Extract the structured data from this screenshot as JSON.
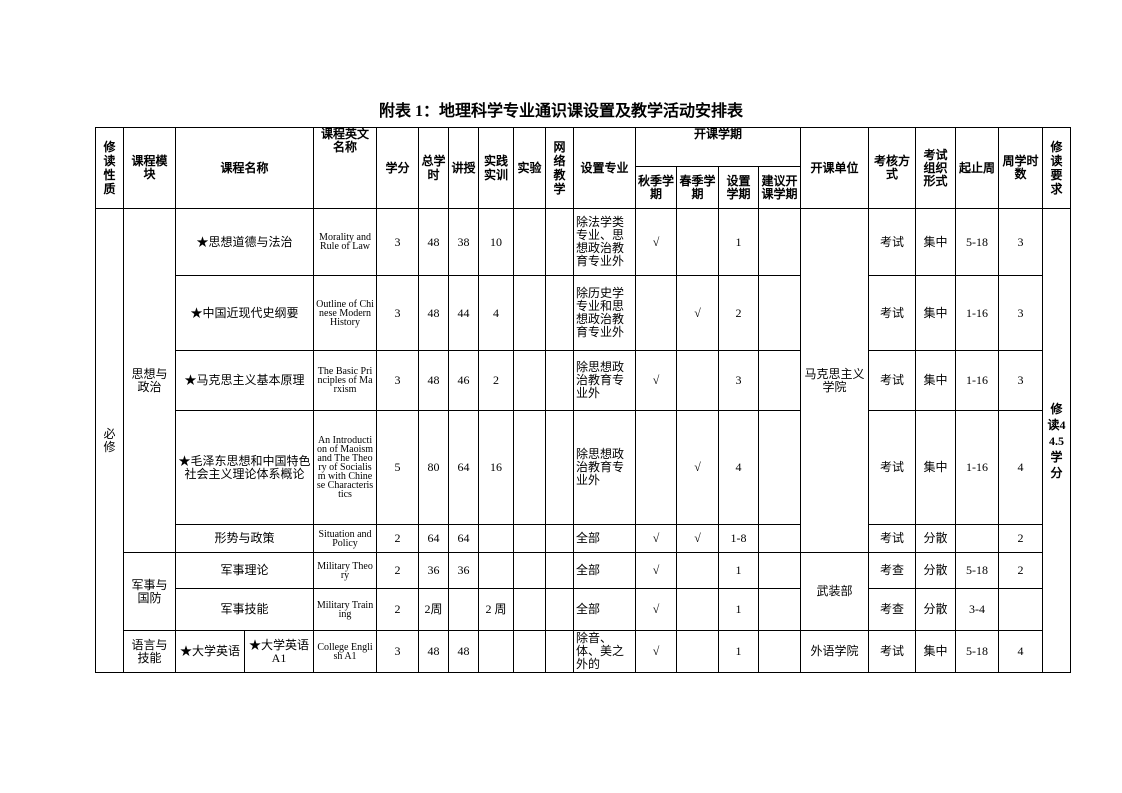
{
  "title": "附表 1：地理科学专业通识课设置及教学活动安排表",
  "headers": {
    "nature": "修读性质",
    "module": "课程模块",
    "name": "课程名称",
    "en_name": "课程英文名称",
    "credits": "学分",
    "total_hours": "总学时",
    "lecture": "讲授",
    "practice": "实践实训",
    "experiment": "实验",
    "online": "网络教学",
    "majors": "设置专业",
    "semester_group": "开课学期",
    "autumn": "秋季学期",
    "spring": "春季学期",
    "set_semester": "设置学期",
    "suggest_semester": "建议开课学期",
    "unit": "开课单位",
    "assess": "考核方式",
    "exam_form": "考试组织形式",
    "weeks": "起止周",
    "weekly_hours": "周学时数",
    "requirement": "修读要求"
  },
  "nature": "必修",
  "requirement": "修读44.5学分",
  "modules": {
    "politics": "思想与政治",
    "military": "军事与国防",
    "language": "语言与技能"
  },
  "units": {
    "marx": "马克思主义学院",
    "military": "武装部",
    "foreign": "外语学院"
  },
  "rows": [
    {
      "name": "★思想道德与法治",
      "en": "Morality and Rule of Law",
      "credits": "3",
      "total": "48",
      "lecture": "38",
      "practice": "10",
      "experiment": "",
      "online": "",
      "majors": "除法学类专业、思想政治教育专业外",
      "autumn": "√",
      "spring": "",
      "set": "1",
      "suggest": "",
      "assess": "考试",
      "form": "集中",
      "weeks": "5-18",
      "weekly": "3"
    },
    {
      "name": "★中国近现代史纲要",
      "en": "Outline of Chinese Modern History",
      "credits": "3",
      "total": "48",
      "lecture": "44",
      "practice": "4",
      "experiment": "",
      "online": "",
      "majors": "除历史学专业和思想政治教育专业外",
      "autumn": "",
      "spring": "√",
      "set": "2",
      "suggest": "",
      "assess": "考试",
      "form": "集中",
      "weeks": "1-16",
      "weekly": "3"
    },
    {
      "name": "★马克思主义基本原理",
      "en": "The Basic Principles of Marxism",
      "credits": "3",
      "total": "48",
      "lecture": "46",
      "practice": "2",
      "experiment": "",
      "online": "",
      "majors": "除思想政治教育专业外",
      "autumn": "√",
      "spring": "",
      "set": "3",
      "suggest": "",
      "assess": "考试",
      "form": "集中",
      "weeks": "1-16",
      "weekly": "3"
    },
    {
      "name": "★毛泽东思想和中国特色社会主义理论体系概论",
      "en": "An Introduction of Maoism and The Theory of Socialism with Chinese Characteristics",
      "credits": "5",
      "total": "80",
      "lecture": "64",
      "practice": "16",
      "experiment": "",
      "online": "",
      "majors": "除思想政治教育专业外",
      "autumn": "",
      "spring": "√",
      "set": "4",
      "suggest": "",
      "assess": "考试",
      "form": "集中",
      "weeks": "1-16",
      "weekly": "4"
    },
    {
      "name": "形势与政策",
      "en": "Situation and Policy",
      "credits": "2",
      "total": "64",
      "lecture": "64",
      "practice": "",
      "experiment": "",
      "online": "",
      "majors": "全部",
      "autumn": "√",
      "spring": "√",
      "set": "1-8",
      "suggest": "",
      "assess": "考试",
      "form": "分散",
      "weeks": "",
      "weekly": "2"
    },
    {
      "name": "军事理论",
      "en": "Military Theory",
      "credits": "2",
      "total": "36",
      "lecture": "36",
      "practice": "",
      "experiment": "",
      "online": "",
      "majors": "全部",
      "autumn": "√",
      "spring": "",
      "set": "1",
      "suggest": "",
      "assess": "考查",
      "form": "分散",
      "weeks": "5-18",
      "weekly": "2"
    },
    {
      "name": "军事技能",
      "en": "Military Training",
      "credits": "2",
      "total": "2周",
      "lecture": "",
      "practice": "2 周",
      "experiment": "",
      "online": "",
      "majors": "全部",
      "autumn": "√",
      "spring": "",
      "set": "1",
      "suggest": "",
      "assess": "考查",
      "form": "分散",
      "weeks": "3-4",
      "weekly": ""
    },
    {
      "group": "★大学英语",
      "name": "★大学英语A1",
      "en": "College English A1",
      "credits": "3",
      "total": "48",
      "lecture": "48",
      "practice": "",
      "experiment": "",
      "online": "",
      "majors": "除音、体、美之外的",
      "autumn": "√",
      "spring": "",
      "set": "1",
      "suggest": "",
      "assess": "考试",
      "form": "集中",
      "weeks": "5-18",
      "weekly": "4"
    }
  ]
}
